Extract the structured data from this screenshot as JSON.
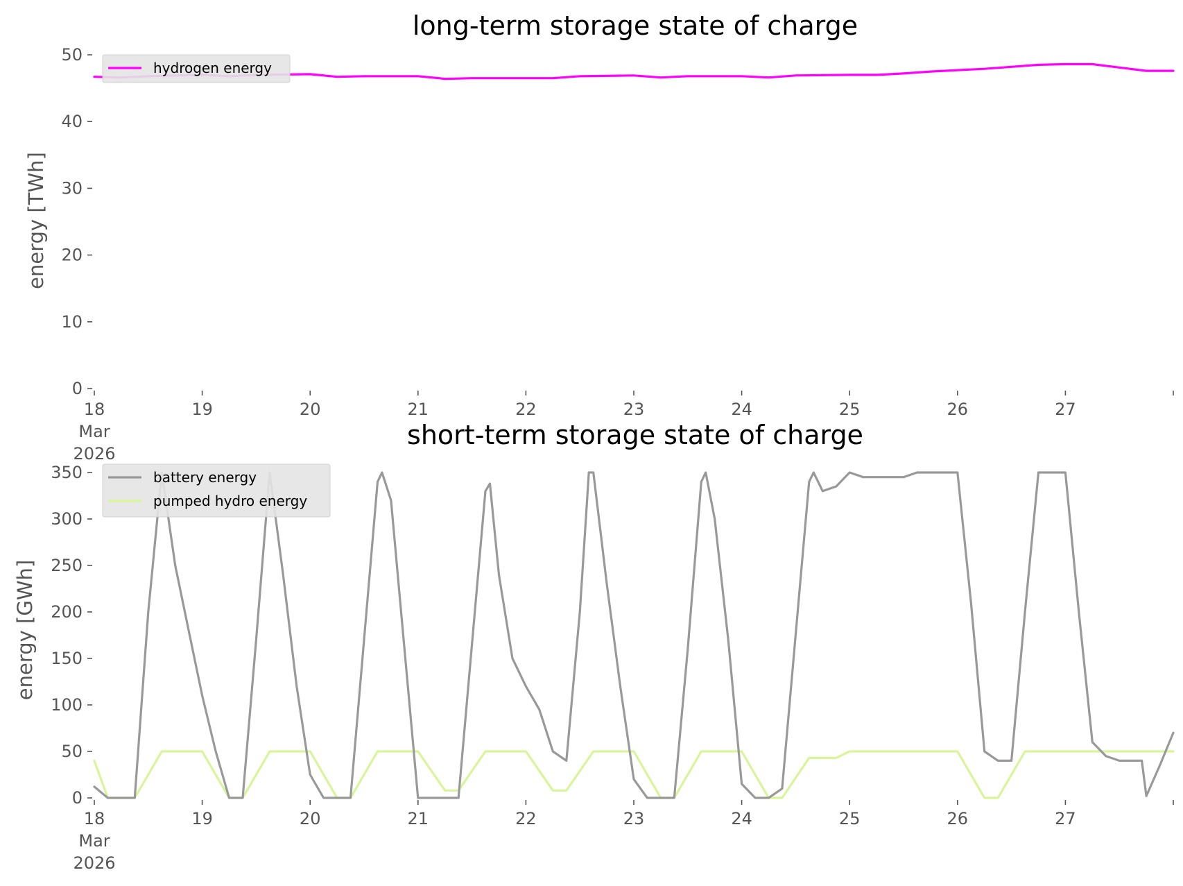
{
  "chart_data": [
    {
      "type": "line",
      "title": "long-term storage state of charge",
      "ylabel": "energy [TWh]",
      "xlabel": "",
      "xlim": [
        "2026-03-18 00:00",
        "2026-03-28 00:00"
      ],
      "ylim": [
        0,
        50
      ],
      "yticks": [
        0,
        10,
        20,
        30,
        40,
        50
      ],
      "x_tick_labels": [
        {
          "date": "2026-03-18",
          "lines": [
            "18",
            "Mar",
            "2026"
          ]
        },
        {
          "date": "2026-03-19",
          "lines": [
            "19"
          ]
        },
        {
          "date": "2026-03-20",
          "lines": [
            "20"
          ]
        },
        {
          "date": "2026-03-21",
          "lines": [
            "21"
          ]
        },
        {
          "date": "2026-03-22",
          "lines": [
            "22"
          ]
        },
        {
          "date": "2026-03-23",
          "lines": [
            "23"
          ]
        },
        {
          "date": "2026-03-24",
          "lines": [
            "24"
          ]
        },
        {
          "date": "2026-03-25",
          "lines": [
            "25"
          ]
        },
        {
          "date": "2026-03-26",
          "lines": [
            "26"
          ]
        },
        {
          "date": "2026-03-27",
          "lines": [
            "27"
          ]
        },
        {
          "date": "2026-03-28",
          "lines": [
            ""
          ]
        }
      ],
      "grid": false,
      "legend_position": "upper-left",
      "series": [
        {
          "name": "hydrogen energy",
          "color": "#ff00ff",
          "points": [
            [
              "2026-03-18 00:00",
              46.7
            ],
            [
              "2026-03-18 06:00",
              46.6
            ],
            [
              "2026-03-18 12:00",
              46.8
            ],
            [
              "2026-03-19 00:00",
              47.0
            ],
            [
              "2026-03-19 06:00",
              46.8
            ],
            [
              "2026-03-19 12:00",
              47.0
            ],
            [
              "2026-03-20 00:00",
              47.1
            ],
            [
              "2026-03-20 06:00",
              46.7
            ],
            [
              "2026-03-20 12:00",
              46.8
            ],
            [
              "2026-03-21 00:00",
              46.8
            ],
            [
              "2026-03-21 06:00",
              46.4
            ],
            [
              "2026-03-21 12:00",
              46.5
            ],
            [
              "2026-03-22 00:00",
              46.5
            ],
            [
              "2026-03-22 06:00",
              46.5
            ],
            [
              "2026-03-22 12:00",
              46.8
            ],
            [
              "2026-03-23 00:00",
              46.9
            ],
            [
              "2026-03-23 06:00",
              46.6
            ],
            [
              "2026-03-23 12:00",
              46.8
            ],
            [
              "2026-03-24 00:00",
              46.8
            ],
            [
              "2026-03-24 06:00",
              46.6
            ],
            [
              "2026-03-24 12:00",
              46.9
            ],
            [
              "2026-03-25 00:00",
              47.0
            ],
            [
              "2026-03-25 06:00",
              47.0
            ],
            [
              "2026-03-25 12:00",
              47.2
            ],
            [
              "2026-03-25 18:00",
              47.5
            ],
            [
              "2026-03-26 00:00",
              47.7
            ],
            [
              "2026-03-26 06:00",
              47.9
            ],
            [
              "2026-03-26 12:00",
              48.2
            ],
            [
              "2026-03-26 18:00",
              48.5
            ],
            [
              "2026-03-27 00:00",
              48.6
            ],
            [
              "2026-03-27 06:00",
              48.6
            ],
            [
              "2026-03-27 12:00",
              48.1
            ],
            [
              "2026-03-27 18:00",
              47.6
            ],
            [
              "2026-03-28 00:00",
              47.6
            ]
          ]
        }
      ]
    },
    {
      "type": "line",
      "title": "short-term storage state of charge",
      "ylabel": "energy [GWh]",
      "xlabel": "",
      "xlim": [
        "2026-03-18 00:00",
        "2026-03-28 00:00"
      ],
      "ylim": [
        0,
        350
      ],
      "yticks": [
        0,
        50,
        100,
        150,
        200,
        250,
        300,
        350
      ],
      "x_tick_labels": [
        {
          "date": "2026-03-18",
          "lines": [
            "18",
            "Mar",
            "2026"
          ]
        },
        {
          "date": "2026-03-19",
          "lines": [
            "19"
          ]
        },
        {
          "date": "2026-03-20",
          "lines": [
            "20"
          ]
        },
        {
          "date": "2026-03-21",
          "lines": [
            "21"
          ]
        },
        {
          "date": "2026-03-22",
          "lines": [
            "22"
          ]
        },
        {
          "date": "2026-03-23",
          "lines": [
            "23"
          ]
        },
        {
          "date": "2026-03-24",
          "lines": [
            "24"
          ]
        },
        {
          "date": "2026-03-25",
          "lines": [
            "25"
          ]
        },
        {
          "date": "2026-03-26",
          "lines": [
            "26"
          ]
        },
        {
          "date": "2026-03-27",
          "lines": [
            "27"
          ]
        },
        {
          "date": "2026-03-28",
          "lines": [
            ""
          ]
        }
      ],
      "grid": false,
      "legend_position": "upper-left",
      "series": [
        {
          "name": "battery energy",
          "color": "#999999",
          "points": [
            [
              "2026-03-18 00:00",
              12
            ],
            [
              "2026-03-18 03:00",
              0
            ],
            [
              "2026-03-18 06:00",
              0
            ],
            [
              "2026-03-18 09:00",
              0
            ],
            [
              "2026-03-18 12:00",
              200
            ],
            [
              "2026-03-18 15:00",
              350
            ],
            [
              "2026-03-18 18:00",
              250
            ],
            [
              "2026-03-18 21:00",
              180
            ],
            [
              "2026-03-19 00:00",
              110
            ],
            [
              "2026-03-19 03:00",
              50
            ],
            [
              "2026-03-19 06:00",
              0
            ],
            [
              "2026-03-19 09:00",
              0
            ],
            [
              "2026-03-19 12:00",
              170
            ],
            [
              "2026-03-19 15:00",
              350
            ],
            [
              "2026-03-19 18:00",
              240
            ],
            [
              "2026-03-19 21:00",
              120
            ],
            [
              "2026-03-20 00:00",
              25
            ],
            [
              "2026-03-20 03:00",
              0
            ],
            [
              "2026-03-20 06:00",
              0
            ],
            [
              "2026-03-20 09:00",
              0
            ],
            [
              "2026-03-20 12:00",
              170
            ],
            [
              "2026-03-20 15:00",
              340
            ],
            [
              "2026-03-20 16:00",
              350
            ],
            [
              "2026-03-20 18:00",
              320
            ],
            [
              "2026-03-20 21:00",
              160
            ],
            [
              "2026-03-21 00:00",
              0
            ],
            [
              "2026-03-21 03:00",
              0
            ],
            [
              "2026-03-21 06:00",
              0
            ],
            [
              "2026-03-21 09:00",
              0
            ],
            [
              "2026-03-21 15:00",
              330
            ],
            [
              "2026-03-21 16:00",
              338
            ],
            [
              "2026-03-21 18:00",
              240
            ],
            [
              "2026-03-21 21:00",
              150
            ],
            [
              "2026-03-22 00:00",
              120
            ],
            [
              "2026-03-22 03:00",
              95
            ],
            [
              "2026-03-22 06:00",
              50
            ],
            [
              "2026-03-22 09:00",
              40
            ],
            [
              "2026-03-22 12:00",
              200
            ],
            [
              "2026-03-22 14:00",
              350
            ],
            [
              "2026-03-22 15:00",
              350
            ],
            [
              "2026-03-22 18:00",
              230
            ],
            [
              "2026-03-22 21:00",
              120
            ],
            [
              "2026-03-23 00:00",
              20
            ],
            [
              "2026-03-23 03:00",
              0
            ],
            [
              "2026-03-23 06:00",
              0
            ],
            [
              "2026-03-23 09:00",
              0
            ],
            [
              "2026-03-23 12:00",
              160
            ],
            [
              "2026-03-23 15:00",
              340
            ],
            [
              "2026-03-23 16:00",
              350
            ],
            [
              "2026-03-23 18:00",
              300
            ],
            [
              "2026-03-23 21:00",
              170
            ],
            [
              "2026-03-24 00:00",
              15
            ],
            [
              "2026-03-24 03:00",
              0
            ],
            [
              "2026-03-24 06:00",
              0
            ],
            [
              "2026-03-24 09:00",
              10
            ],
            [
              "2026-03-24 15:00",
              340
            ],
            [
              "2026-03-24 16:00",
              350
            ],
            [
              "2026-03-24 18:00",
              330
            ],
            [
              "2026-03-24 21:00",
              335
            ],
            [
              "2026-03-25 00:00",
              350
            ],
            [
              "2026-03-25 03:00",
              345
            ],
            [
              "2026-03-25 09:00",
              345
            ],
            [
              "2026-03-25 12:00",
              345
            ],
            [
              "2026-03-25 15:00",
              350
            ],
            [
              "2026-03-25 21:00",
              350
            ],
            [
              "2026-03-26 00:00",
              350
            ],
            [
              "2026-03-26 03:00",
              210
            ],
            [
              "2026-03-26 06:00",
              50
            ],
            [
              "2026-03-26 09:00",
              40
            ],
            [
              "2026-03-26 12:00",
              40
            ],
            [
              "2026-03-26 15:00",
              200
            ],
            [
              "2026-03-26 18:00",
              350
            ],
            [
              "2026-03-26 21:00",
              350
            ],
            [
              "2026-03-27 00:00",
              350
            ],
            [
              "2026-03-27 03:00",
              200
            ],
            [
              "2026-03-27 06:00",
              60
            ],
            [
              "2026-03-27 09:00",
              45
            ],
            [
              "2026-03-27 12:00",
              40
            ],
            [
              "2026-03-27 15:00",
              40
            ],
            [
              "2026-03-27 17:00",
              40
            ],
            [
              "2026-03-27 18:00",
              2
            ],
            [
              "2026-03-27 21:00",
              35
            ],
            [
              "2026-03-28 00:00",
              70
            ]
          ]
        },
        {
          "name": "pumped hydro energy",
          "color": "#d9f59a",
          "points": [
            [
              "2026-03-18 00:00",
              40
            ],
            [
              "2026-03-18 03:00",
              0
            ],
            [
              "2026-03-18 09:00",
              0
            ],
            [
              "2026-03-18 15:00",
              50
            ],
            [
              "2026-03-19 00:00",
              50
            ],
            [
              "2026-03-19 06:00",
              0
            ],
            [
              "2026-03-19 09:00",
              0
            ],
            [
              "2026-03-19 15:00",
              50
            ],
            [
              "2026-03-20 00:00",
              50
            ],
            [
              "2026-03-20 06:00",
              0
            ],
            [
              "2026-03-20 09:00",
              0
            ],
            [
              "2026-03-20 15:00",
              50
            ],
            [
              "2026-03-21 00:00",
              50
            ],
            [
              "2026-03-21 06:00",
              8
            ],
            [
              "2026-03-21 09:00",
              8
            ],
            [
              "2026-03-21 15:00",
              50
            ],
            [
              "2026-03-22 00:00",
              50
            ],
            [
              "2026-03-22 06:00",
              8
            ],
            [
              "2026-03-22 09:00",
              8
            ],
            [
              "2026-03-22 15:00",
              50
            ],
            [
              "2026-03-23 00:00",
              50
            ],
            [
              "2026-03-23 06:00",
              0
            ],
            [
              "2026-03-23 09:00",
              0
            ],
            [
              "2026-03-23 15:00",
              50
            ],
            [
              "2026-03-24 00:00",
              50
            ],
            [
              "2026-03-24 06:00",
              0
            ],
            [
              "2026-03-24 09:00",
              0
            ],
            [
              "2026-03-24 15:00",
              43
            ],
            [
              "2026-03-24 21:00",
              43
            ],
            [
              "2026-03-25 00:00",
              50
            ],
            [
              "2026-03-26 00:00",
              50
            ],
            [
              "2026-03-26 06:00",
              0
            ],
            [
              "2026-03-26 09:00",
              0
            ],
            [
              "2026-03-26 15:00",
              50
            ],
            [
              "2026-03-28 00:00",
              50
            ]
          ]
        }
      ]
    }
  ]
}
